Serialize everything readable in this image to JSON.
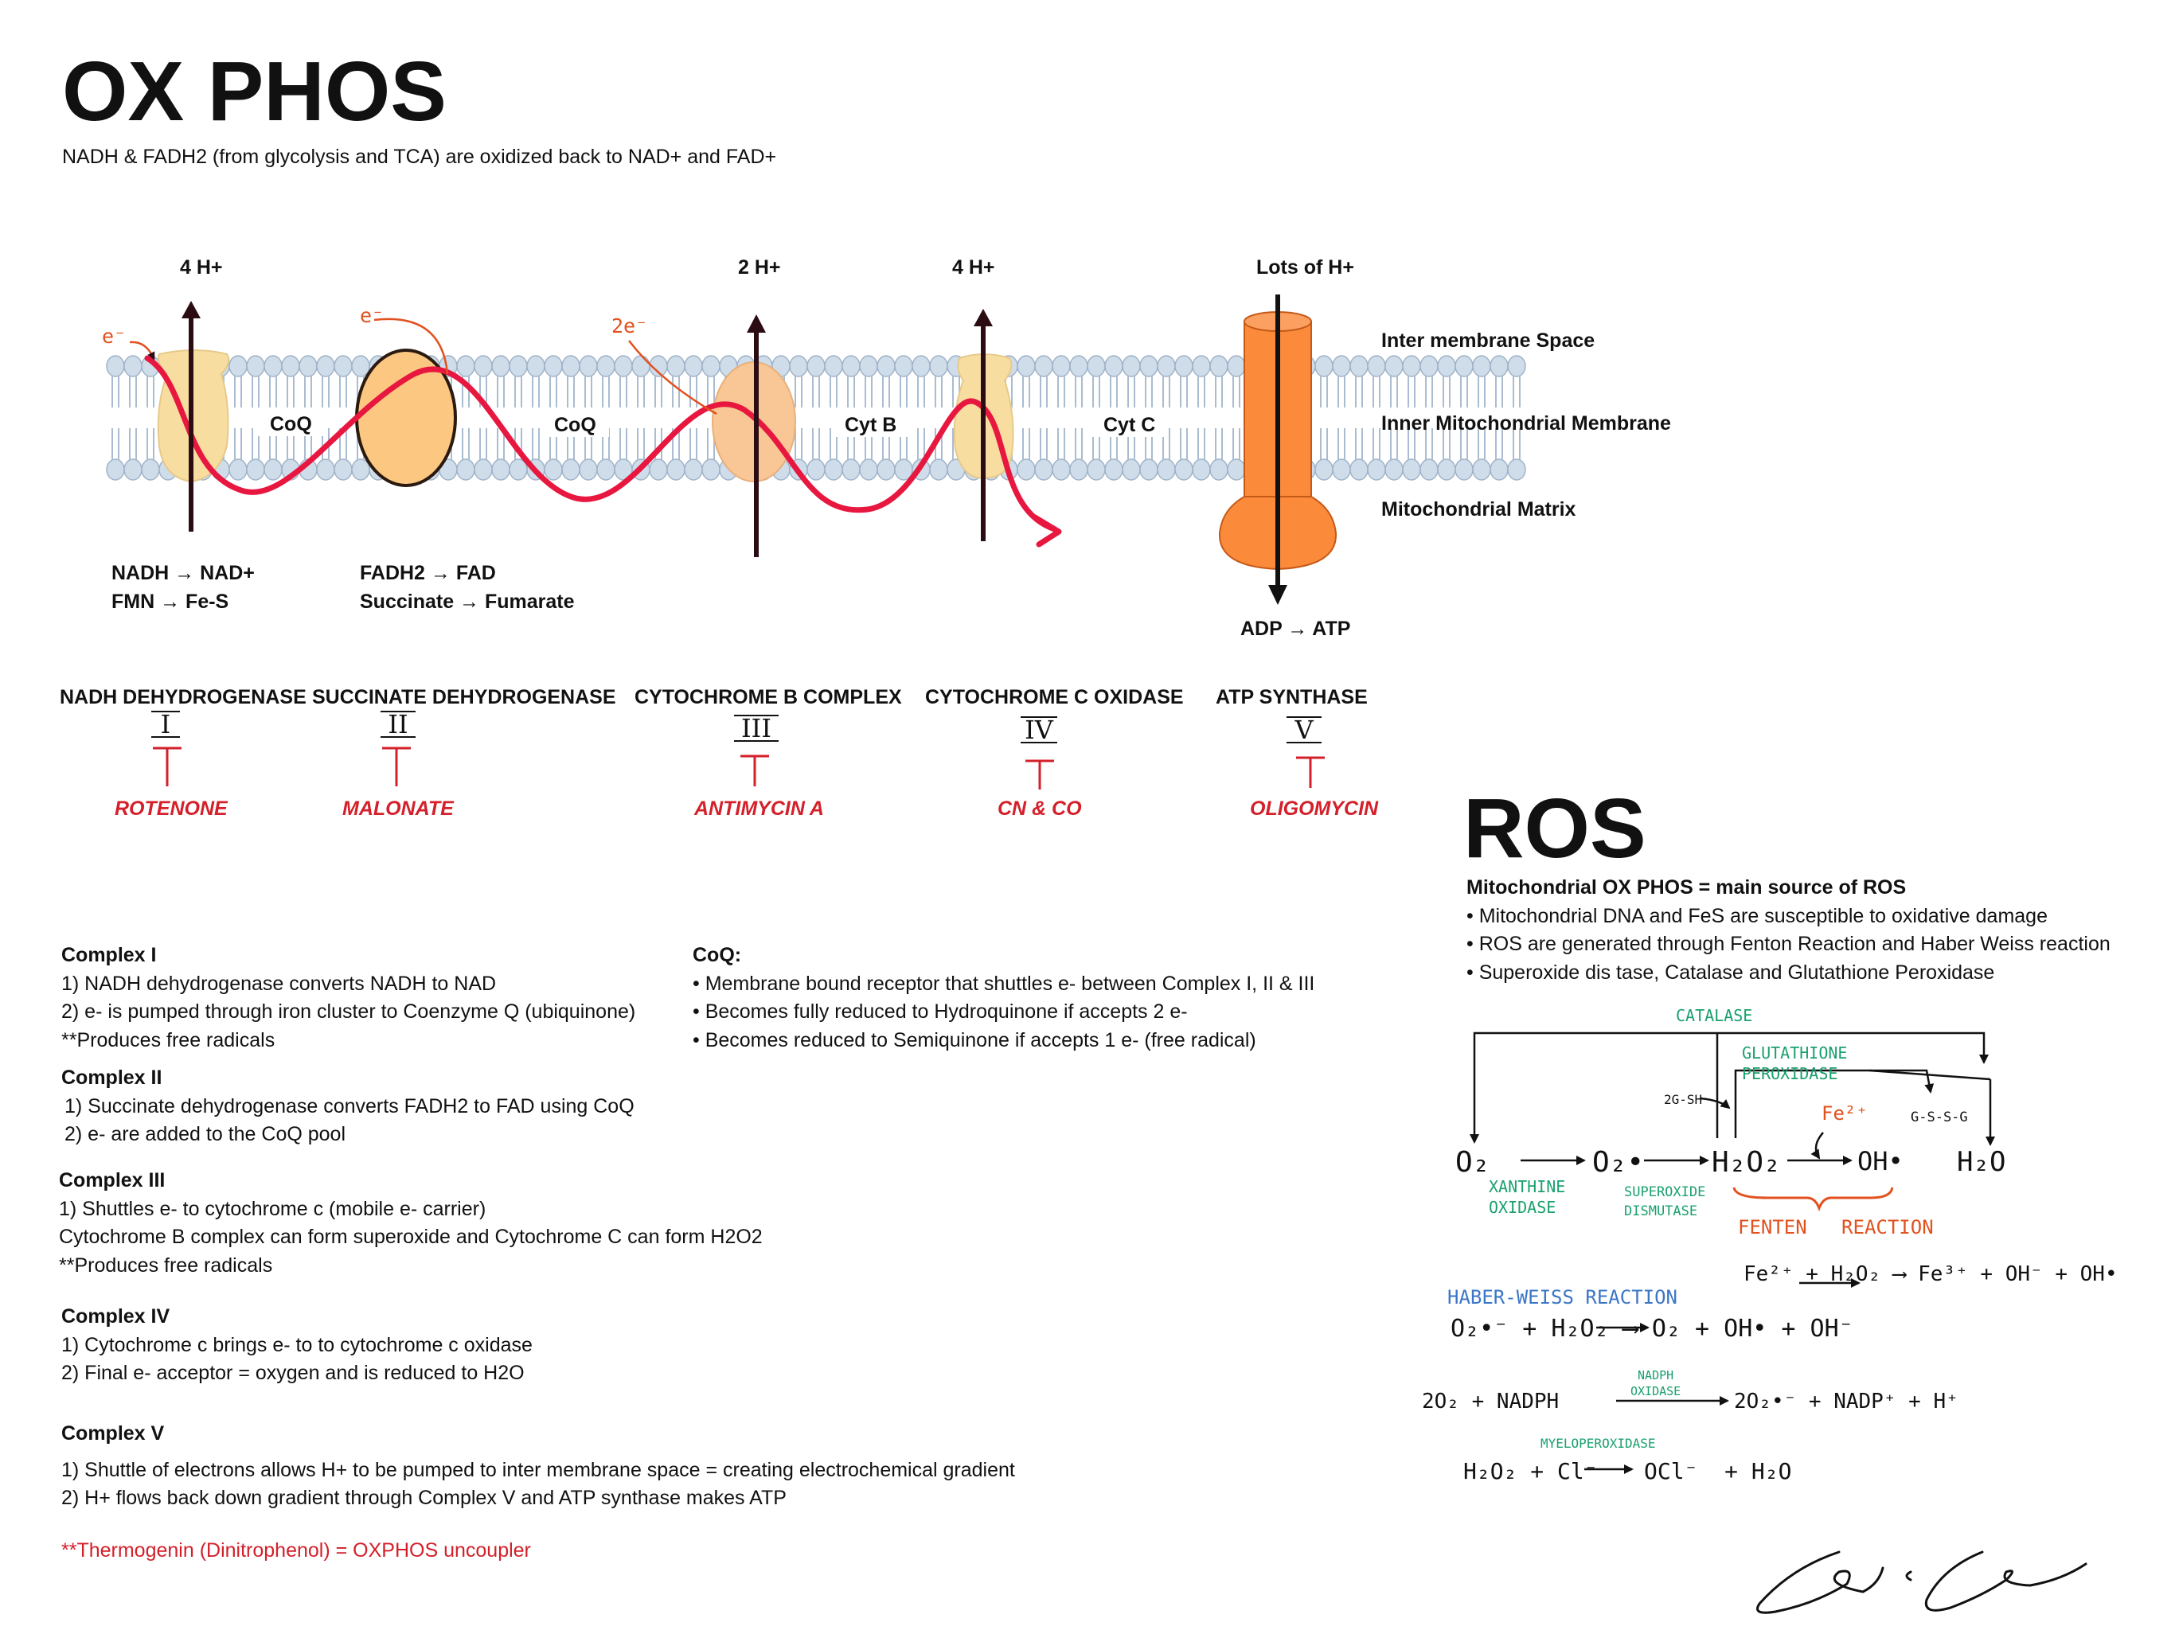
{
  "title": "OX PHOS",
  "subtitle": "NADH & FADH2 (from glycolysis and TCA) are oxidized back to NAD+ and FAD+",
  "diagram": {
    "proton_labels": [
      "4 H+",
      "2 H+",
      "4 H+",
      "Lots of H+"
    ],
    "electron_labels": [
      "e⁻",
      "e⁻",
      "2e⁻"
    ],
    "membrane_labels": [
      "CoQ",
      "CoQ",
      "Cyt B",
      "Cyt C"
    ],
    "region_labels": [
      "Inter membrane Space",
      "Inner Mitochondrial Membrane",
      "Mitochondrial Matrix"
    ],
    "reaction_1": [
      "NADH → NAD+",
      "FMN → Fe-S"
    ],
    "reaction_2": [
      "FADH2 → FAD",
      "Succinate → Fumarate"
    ],
    "atp_label": "ADP → ATP",
    "colors": {
      "electron_path": "#e8173f",
      "complex_pale": "#f7dea0",
      "complex_orange": "#fbc781",
      "atp_synthase": "#fb8a3b",
      "membrane": "#cfdcea"
    }
  },
  "complexes": [
    {
      "name": "NADH DEHYDROGENASE",
      "numeral": "I",
      "inhibitor": "ROTENONE"
    },
    {
      "name": "SUCCINATE DEHYDROGENASE",
      "numeral": "II",
      "inhibitor": "MALONATE"
    },
    {
      "name": "CYTOCHROME B COMPLEX",
      "numeral": "III",
      "inhibitor": "ANTIMYCIN A"
    },
    {
      "name": "CYTOCHROME C OXIDASE",
      "numeral": "IV",
      "inhibitor": "CN & CO"
    },
    {
      "name": "ATP SYNTHASE",
      "numeral": "V",
      "inhibitor": "OLIGOMYCIN"
    }
  ],
  "notes": {
    "c1": {
      "title": "Complex I",
      "lines": [
        "1) NADH dehydrogenase converts NADH to NAD",
        "2) e- is pumped through iron cluster to Coenzyme Q (ubiquinone)",
        "**Produces free radicals"
      ]
    },
    "c2": {
      "title": "Complex II",
      "lines": [
        "1) Succinate dehydrogenase converts FADH2 to FAD using CoQ",
        "2) e- are added to the CoQ pool"
      ]
    },
    "c3": {
      "title": "Complex III",
      "lines": [
        "1) Shuttles e- to cytochrome c (mobile e- carrier)",
        "Cytochrome B complex can form superoxide and Cytochrome C can form H2O2",
        "**Produces free radicals"
      ]
    },
    "c4": {
      "title": "Complex IV",
      "lines": [
        "1) Cytochrome c brings e- to to cytochrome c oxidase",
        "2) Final e- acceptor = oxygen and is reduced to H2O"
      ]
    },
    "c5": {
      "title": "Complex V",
      "lines": [
        "1) Shuttle of electrons allows H+ to be pumped to inter membrane space = creating electrochemical gradient",
        "2) H+ flows back down gradient through Complex V and ATP synthase makes ATP"
      ]
    },
    "uncoupler": "**Thermogenin (Dinitrophenol) = OXPHOS uncoupler",
    "coq": {
      "title": "CoQ:",
      "lines": [
        "• Membrane bound receptor that shuttles e- between Complex I, II & III",
        "• Becomes fully reduced to Hydroquinone if accepts 2 e-",
        "• Becomes reduced to Semiquinone if accepts 1 e- (free radical)"
      ]
    }
  },
  "ros": {
    "title": "ROS",
    "heading": "Mitochondrial OX PHOS = main source of ROS",
    "bullets": [
      "• Mitochondrial DNA and FeS are susceptible to oxidative damage",
      "• ROS are generated through Fenton Reaction and Haber Weiss reaction",
      "• Superoxide dis tase, Catalase and Glutathione Peroxidase"
    ],
    "scheme": {
      "catalase": "CATALASE",
      "glutathione_1": "GLUTATHIONE",
      "glutathione_2": "PEROXIDASE",
      "gsh": "2G-SH",
      "gssg": "G-S-S-G",
      "fe": "Fe²⁺",
      "o2": "O₂",
      "superoxide": "O₂•",
      "h2o2": "H₂O₂",
      "oh": "OH•",
      "h2o": "H₂O",
      "xanthine_1": "XANTHINE",
      "xanthine_2": "OXIDASE",
      "sod_1": "SUPEROXIDE",
      "sod_2": "DISMUTASE",
      "fenton": "FENTEN   REACTION",
      "fenton_eq": "Fe²⁺ + H₂O₂ ⟶ Fe³⁺ + OH⁻ + OH•",
      "haber": "HABER-WEISS REACTION",
      "haber_eq": "O₂•⁻ + H₂O₂ ⟶ O₂ + OH• + OH⁻",
      "nadph_ox_1": "NADPH",
      "nadph_ox_2": "OXIDASE",
      "nadph_left": "2O₂ + NADPH",
      "nadph_right": "2O₂•⁻ + NADP⁺ + H⁺",
      "mpo": "MYELOPEROXIDASE",
      "mpo_left": "H₂O₂ + Cl⁻",
      "mpo_right": "OCl⁻  + H₂O",
      "colors": {
        "green": "#1aa06e",
        "orange": "#e2511e",
        "blue": "#3c76c6"
      }
    }
  }
}
